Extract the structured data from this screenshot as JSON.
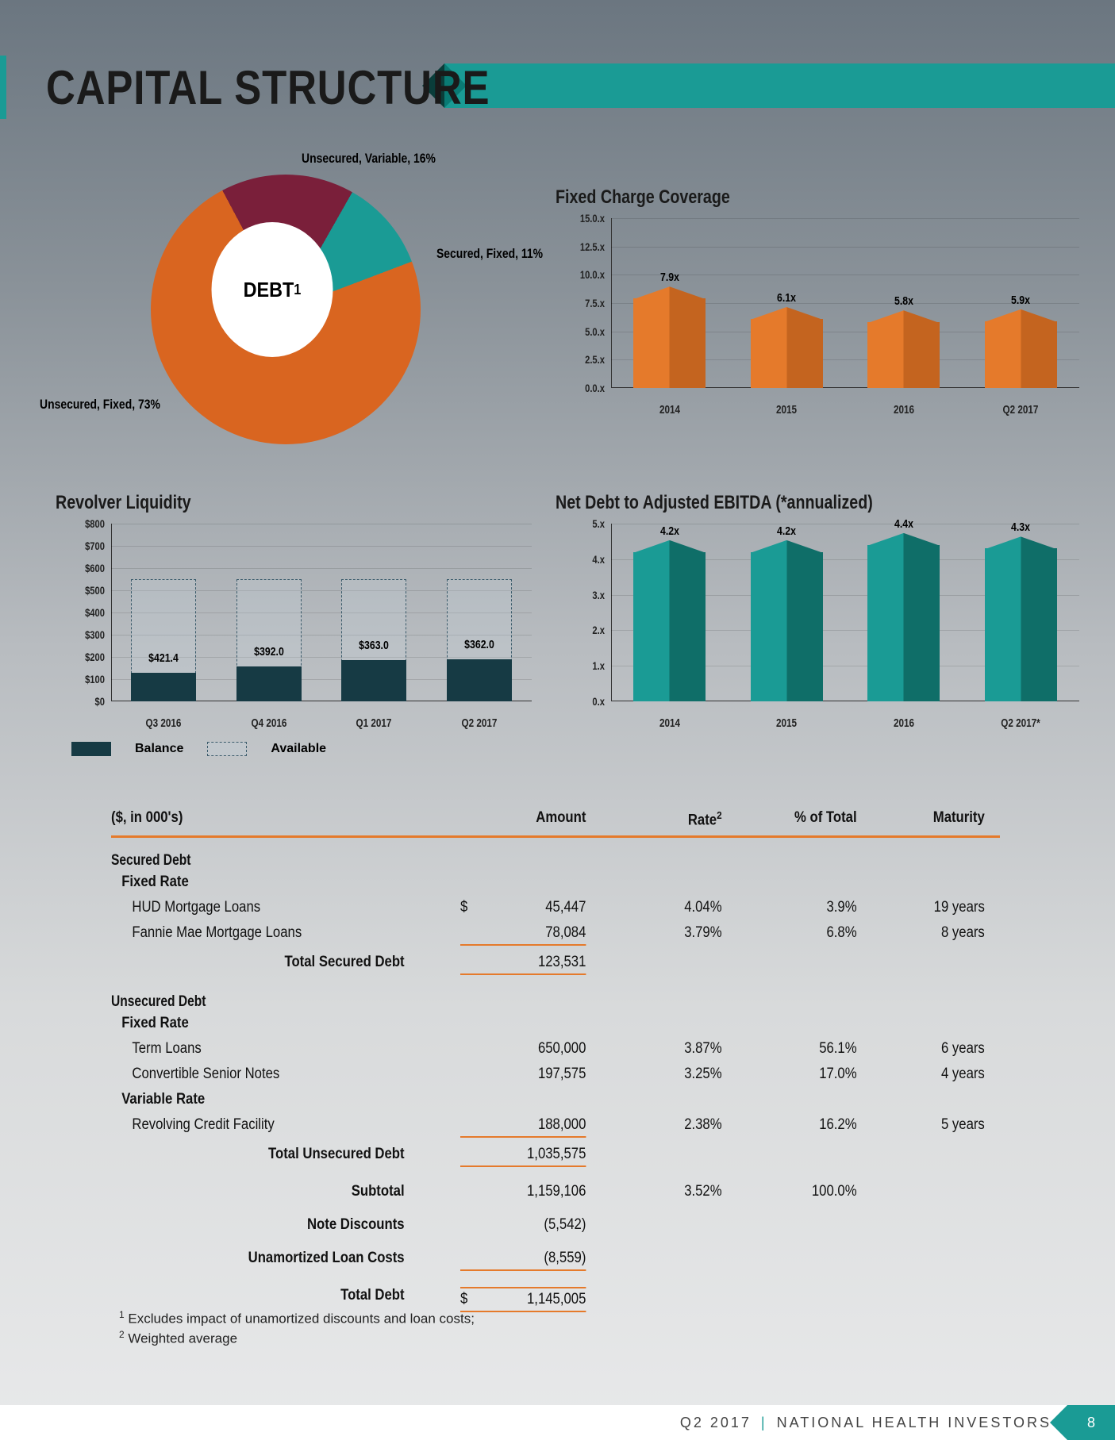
{
  "page": {
    "title": "CAPITAL STRUCTURE",
    "footer_period": "Q2 2017",
    "footer_company": "NATIONAL  HEALTH  INVESTORS",
    "page_number": "8",
    "accent_teal": "#1a9b95",
    "accent_orange": "#e57a2b"
  },
  "donut": {
    "center_label": "DEBT",
    "center_sup": "1",
    "slices": [
      {
        "label": "Unsecured, Fixed, 73%",
        "value": 73,
        "color": "#d96520"
      },
      {
        "label": "Unsecured, Variable, 16%",
        "value": 16,
        "color": "#7a1f3a"
      },
      {
        "label": "Secured, Fixed, 11%",
        "value": 11,
        "color": "#1a9b95"
      }
    ],
    "label_positions": {
      "unsec_fixed": [
        0,
        310
      ],
      "unsec_var": [
        300,
        0
      ],
      "sec_fixed": [
        470,
        120
      ]
    }
  },
  "fixed_charge": {
    "title": "Fixed Charge Coverage",
    "ymax": 15,
    "ystep": 2.5,
    "yticks": [
      "0.0.x",
      "2.5.x",
      "5.0.x",
      "7.5.x",
      "10.0.x",
      "12.5.x",
      "15.0.x"
    ],
    "categories": [
      "2014",
      "2015",
      "2016",
      "Q2 2017"
    ],
    "values": [
      7.9,
      6.1,
      5.8,
      5.9
    ],
    "value_labels": [
      "7.9x",
      "6.1x",
      "5.8x",
      "5.9x"
    ],
    "bar_color": "#e57a2b",
    "bar_color_dark": "#c4641f"
  },
  "revolver": {
    "title": "Revolver Liquidity",
    "ymax": 800,
    "ystep": 100,
    "yticks": [
      "$0",
      "$100",
      "$200",
      "$300",
      "$400",
      "$500",
      "$600",
      "$700",
      "$800"
    ],
    "categories": [
      "Q3 2016",
      "Q4 2016",
      "Q1 2017",
      "Q2 2017"
    ],
    "available": [
      421.4,
      392.0,
      363.0,
      362.0
    ],
    "balance": [
      128.6,
      158.0,
      187.0,
      188.0
    ],
    "avail_labels": [
      "$421.4",
      "$392.0",
      "$363.0",
      "$362.0"
    ],
    "balance_color": "#163a44",
    "available_fill": "rgba(200,210,220,0.25)",
    "available_border": "#3a5a6a",
    "legend": {
      "balance": "Balance",
      "available": "Available"
    }
  },
  "netdebt": {
    "title": "Net Debt to Adjusted EBITDA (*annualized)",
    "ymax": 5,
    "ystep": 1,
    "yticks": [
      "0.x",
      "1.x",
      "2.x",
      "3.x",
      "4.x",
      "5.x"
    ],
    "categories": [
      "2014",
      "2015",
      "2016",
      "Q2 2017*"
    ],
    "values": [
      4.2,
      4.2,
      4.4,
      4.3
    ],
    "value_labels": [
      "4.2x",
      "4.2x",
      "4.4x",
      "4.3x"
    ],
    "bar_color": "#1a9b95",
    "bar_color_dark": "#0f6e68"
  },
  "table": {
    "header": {
      "label": "($, in 000's)",
      "amount": "Amount",
      "rate": "Rate",
      "rate_sup": "2",
      "pct": "% of Total",
      "maturity": "Maturity"
    },
    "secured": {
      "title": "Secured Debt",
      "subtitle": "Fixed Rate",
      "rows": [
        {
          "label": "HUD Mortgage Loans",
          "amount": "45,447",
          "rate": "4.04%",
          "pct": "3.9%",
          "maturity": "19 years",
          "dollar": "$"
        },
        {
          "label": "Fannie Mae Mortgage Loans",
          "amount": "78,084",
          "rate": "3.79%",
          "pct": "6.8%",
          "maturity": "8 years"
        }
      ],
      "total": {
        "label": "Total Secured Debt",
        "amount": "123,531"
      }
    },
    "unsecured": {
      "title": "Unsecured Debt",
      "sub_fixed": "Fixed Rate",
      "rows_fixed": [
        {
          "label": "Term Loans",
          "amount": "650,000",
          "rate": "3.87%",
          "pct": "56.1%",
          "maturity": "6 years"
        },
        {
          "label": "Convertible Senior Notes",
          "amount": "197,575",
          "rate": "3.25%",
          "pct": "17.0%",
          "maturity": "4 years"
        }
      ],
      "sub_var": "Variable Rate",
      "rows_var": [
        {
          "label": "Revolving Credit Facility",
          "amount": "188,000",
          "rate": "2.38%",
          "pct": "16.2%",
          "maturity": "5 years"
        }
      ],
      "total": {
        "label": "Total Unsecured Debt",
        "amount": "1,035,575"
      }
    },
    "subtotal": {
      "label": "Subtotal",
      "amount": "1,159,106",
      "rate": "3.52%",
      "pct": "100.0%"
    },
    "note_disc": {
      "label": "Note Discounts",
      "amount": "(5,542)"
    },
    "unamort": {
      "label": "Unamortized Loan Costs",
      "amount": "(8,559)"
    },
    "total_debt": {
      "label": "Total Debt",
      "amount": "1,145,005",
      "dollar": "$"
    },
    "footnote1": "Excludes impact of unamortized discounts and loan costs;",
    "footnote2": "Weighted average"
  }
}
